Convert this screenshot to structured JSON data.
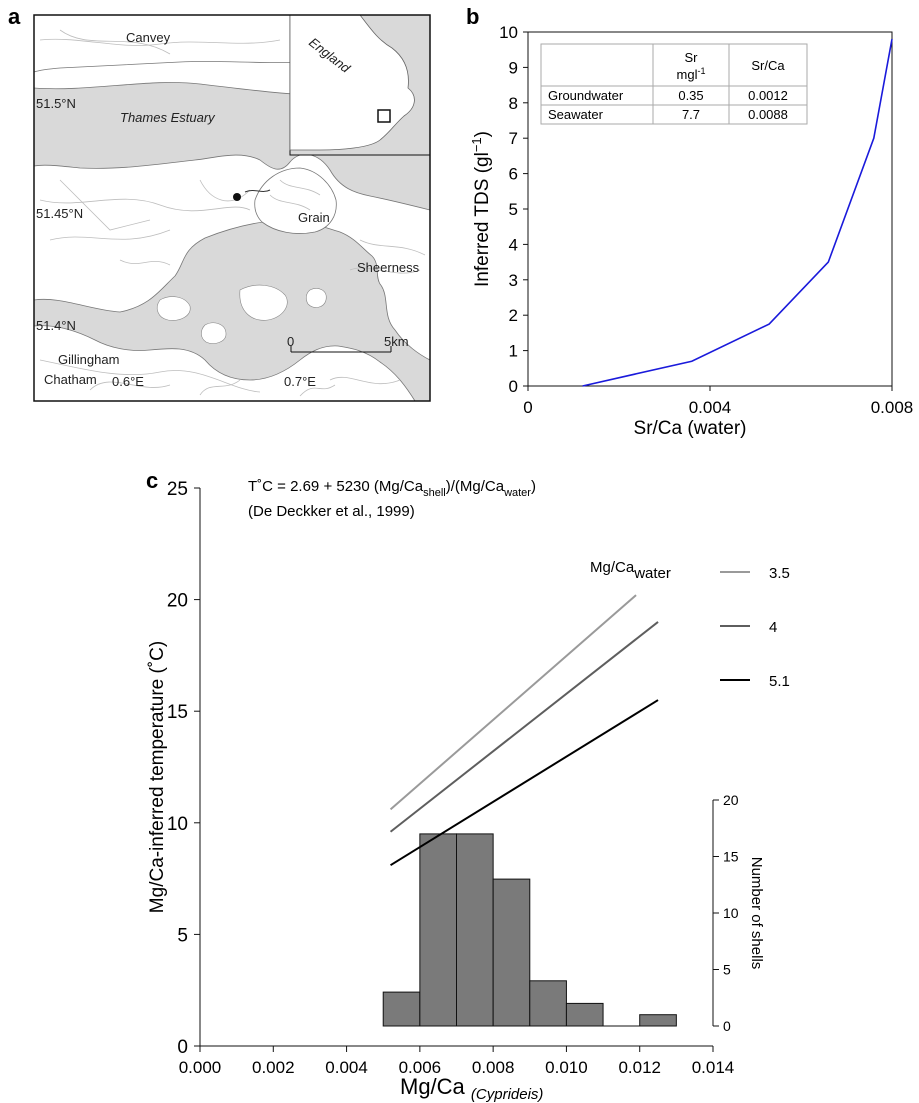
{
  "panel_labels": {
    "a": "a",
    "b": "b",
    "c": "c"
  },
  "map": {
    "places": {
      "canvey": "Canvey",
      "thames_estuary": "Thames Estuary",
      "grain": "Grain",
      "sheerness": "Sheerness",
      "gillingham": "Gillingham",
      "chatham": "Chatham",
      "england": "England"
    },
    "lat_labels": [
      "51.5°N",
      "51.45°N",
      "51.4°N"
    ],
    "lon_labels": [
      "0.6°E",
      "0.7°E"
    ],
    "scale_bar": {
      "start": "0",
      "end": "5km"
    },
    "colors": {
      "water": "#d9d9d9",
      "land": "#ffffff",
      "roads": "#bdbdbd"
    }
  },
  "table": {
    "col_headers": [
      "",
      "Sr",
      "Sr/Ca"
    ],
    "col_units": [
      "",
      "mgl",
      "-1"
    ],
    "rows": [
      [
        "Groundwater",
        "0.35",
        "0.0012"
      ],
      [
        "Seawater",
        "7.7",
        "0.0088"
      ]
    ]
  },
  "chart_data": [
    {
      "panel": "b",
      "type": "line",
      "xlabel": "Sr/Ca (water)",
      "ylabel": "Inferred TDS (gl",
      "ylabel_sup": "−1",
      "ylabel_end": ")",
      "xlim": [
        0,
        0.008
      ],
      "ylim": [
        0,
        10
      ],
      "xticks": [
        0,
        0.004,
        0.008
      ],
      "xtick_labels": [
        "0",
        "0.004",
        "0.008"
      ],
      "yticks": [
        0,
        1,
        2,
        3,
        4,
        5,
        6,
        7,
        8,
        9,
        10
      ],
      "ytick_labels": [
        "0",
        "1",
        "2",
        "3",
        "4",
        "5",
        "6",
        "7",
        "8",
        "9",
        "10"
      ],
      "series": [
        {
          "color": "#1a1adb",
          "x": [
            0.0012,
            0.0036,
            0.0053,
            0.0066,
            0.0076,
            0.008
          ],
          "y": [
            0,
            0.7,
            1.75,
            3.5,
            7,
            9.8
          ]
        }
      ]
    },
    {
      "panel": "c",
      "type": "line",
      "equation": "T˚C = 2.69 + 5230 (Mg/Ca",
      "equation_sub1": "shell",
      "equation_mid": ")/(Mg/Ca",
      "equation_sub2": "water",
      "equation_end": ")",
      "citation": "(De Deckker et al., 1999)",
      "legend_title": "Mg/Ca",
      "legend_title_sub": "water",
      "xlabel": "Mg/Ca",
      "xlabel_sub": "(Cyprideis)",
      "ylabel": "Mg/Ca-inferred temperature (˚C)",
      "xlim": [
        0,
        0.014
      ],
      "ylim": [
        0,
        25
      ],
      "xticks": [
        0,
        0.002,
        0.004,
        0.006,
        0.008,
        0.01,
        0.012,
        0.014
      ],
      "xtick_labels": [
        "0.000",
        "0.002",
        "0.004",
        "0.006",
        "0.008",
        "0.010",
        "0.012",
        "0.014"
      ],
      "yticks": [
        0,
        5,
        10,
        15,
        20,
        25
      ],
      "ytick_labels": [
        "0",
        "5",
        "10",
        "15",
        "20",
        "25"
      ],
      "series": [
        {
          "name": "3.5",
          "color": "#9a9a9a",
          "x": [
            0.0052,
            0.0119
          ],
          "y": [
            10.6,
            20.2
          ]
        },
        {
          "name": "4",
          "color": "#5e5e5e",
          "x": [
            0.0052,
            0.0125
          ],
          "y": [
            9.6,
            19.0
          ]
        },
        {
          "name": "5.1",
          "color": "#000000",
          "x": [
            0.0052,
            0.0125
          ],
          "y": [
            8.1,
            15.5
          ]
        }
      ],
      "histogram": {
        "type": "bar",
        "ylabel": "Number of shells",
        "ylim": [
          0,
          20
        ],
        "yticks": [
          0,
          5,
          10,
          15,
          20
        ],
        "ytick_labels": [
          "0",
          "5",
          "10",
          "15",
          "20"
        ],
        "bin_edges": [
          0.005,
          0.006,
          0.007,
          0.008,
          0.009,
          0.01,
          0.011,
          0.012,
          0.013
        ],
        "counts": [
          3,
          17,
          17,
          13,
          4,
          2,
          0,
          1
        ],
        "color": "#7a7a7a"
      }
    }
  ]
}
